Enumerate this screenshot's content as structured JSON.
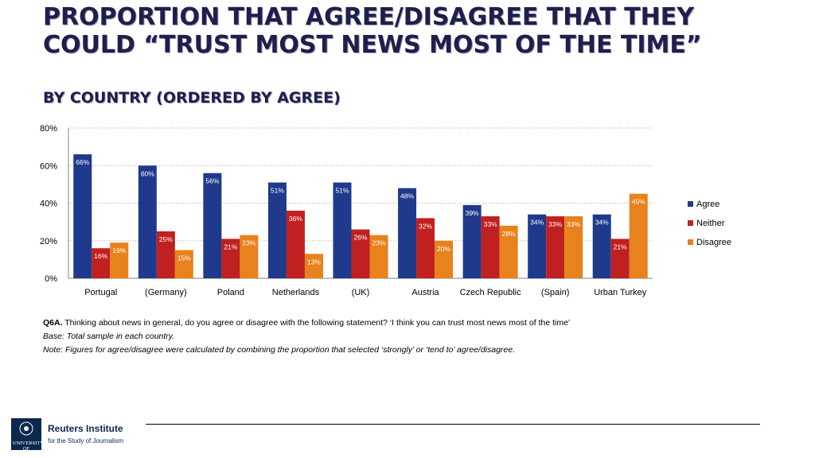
{
  "header": {
    "title": "PROPORTION THAT AGREE/DISAGREE THAT THEY COULD “TRUST MOST NEWS MOST OF THE TIME”",
    "subtitle": "BY COUNTRY (ORDERED BY AGREE)"
  },
  "chart_data": {
    "type": "bar",
    "title": "Proportion that agree/disagree that they could “trust most news most of the time”",
    "categories": [
      "Portugal",
      "(Germany)",
      "Poland",
      "Netherlands",
      "(UK)",
      "Austria",
      "Czech Republic",
      "(Spain)",
      "Urban Turkey"
    ],
    "series": [
      {
        "name": "Agree",
        "color": "#1f3a8c",
        "values": [
          66,
          60,
          56,
          51,
          51,
          48,
          39,
          34,
          34
        ]
      },
      {
        "name": "Neither",
        "color": "#c0201f",
        "values": [
          16,
          25,
          21,
          36,
          26,
          32,
          33,
          33,
          21
        ]
      },
      {
        "name": "Disagree",
        "color": "#e8821c",
        "values": [
          19,
          15,
          23,
          13,
          23,
          20,
          28,
          33,
          45
        ]
      }
    ],
    "ylim": [
      0,
      80
    ],
    "yticks": [
      0,
      20,
      40,
      60,
      80
    ],
    "ytick_labels": [
      "0%",
      "20%",
      "40%",
      "60%",
      "80%"
    ],
    "value_suffix": "%",
    "legend_position": "right",
    "grid": true
  },
  "notes": {
    "q_label": "Q6A.",
    "question": " Thinking about news in general, do you agree or disagree with the following statement? ‘I think you can trust most news most of the time’",
    "base": "Base: Total sample in each country.",
    "note": "Note: Figures for agree/disagree were calculated by combining the proportion that selected ‘strongly’ or ‘tend to’ agree/disagree."
  },
  "footer": {
    "crest_text": "UNIVERSITY OF OXFORD",
    "brand": "Reuters Institute",
    "brand_sub": "for the Study of Journalism"
  }
}
